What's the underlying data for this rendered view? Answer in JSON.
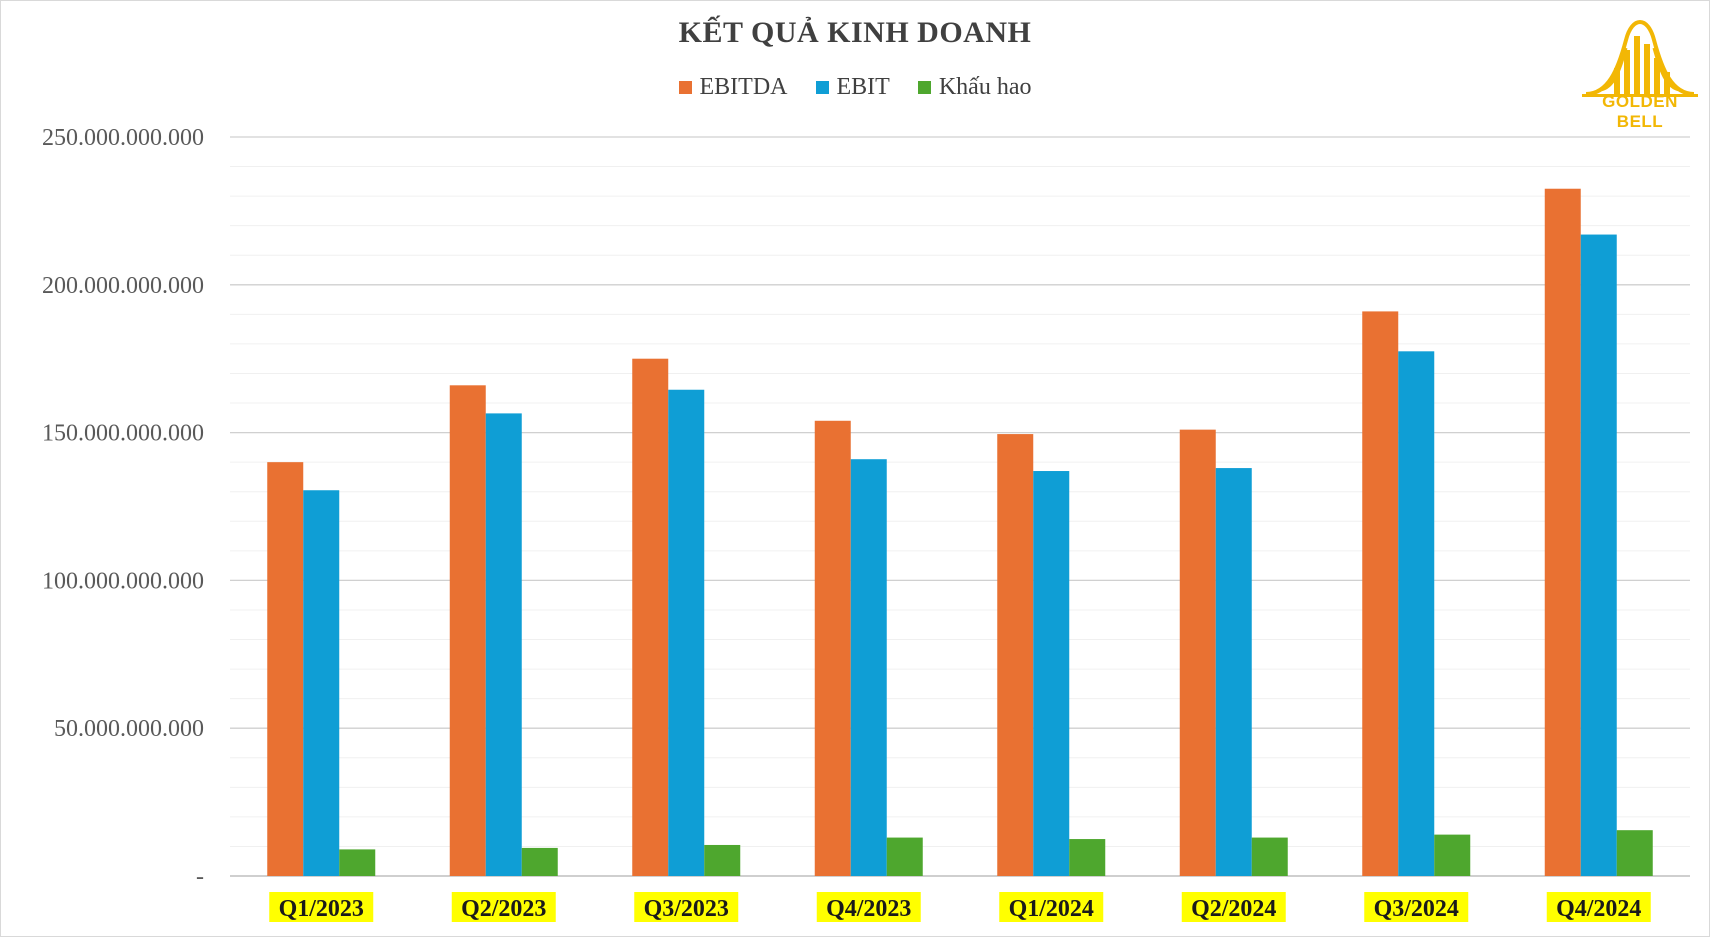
{
  "brand": {
    "logo_text": "GOLDEN BELL",
    "logo_color": "#f2b705"
  },
  "chart_data": {
    "type": "bar",
    "title": "KẾT QUẢ KINH DOANH",
    "categories": [
      "Q1/2023",
      "Q2/2023",
      "Q3/2023",
      "Q4/2023",
      "Q1/2024",
      "Q2/2024",
      "Q3/2024",
      "Q4/2024"
    ],
    "series": [
      {
        "name": "EBITDA",
        "color": "#e97132",
        "values": [
          140000000000,
          166000000000,
          175000000000,
          154000000000,
          149500000000,
          151000000000,
          191000000000,
          232500000000
        ]
      },
      {
        "name": "EBIT",
        "color": "#0f9ed5",
        "values": [
          130500000000,
          156500000000,
          164500000000,
          141000000000,
          137000000000,
          138000000000,
          177500000000,
          217000000000
        ]
      },
      {
        "name": "Khấu hao",
        "color": "#4ea72e",
        "values": [
          9000000000,
          9500000000,
          10500000000,
          13000000000,
          12500000000,
          13000000000,
          14000000000,
          15500000000
        ]
      }
    ],
    "ylim": [
      0,
      250000000000
    ],
    "yticks": [
      0,
      50000000000,
      100000000000,
      150000000000,
      200000000000,
      250000000000
    ],
    "ytick_labels": [
      "-",
      "50.000.000.000",
      "100.000.000.000",
      "150.000.000.000",
      "200.000.000.000",
      "250.000.000.000"
    ],
    "minor_grid_step": 10000000000,
    "grid": true,
    "legend_position": "top",
    "xtick_highlight": "#ffff00"
  }
}
